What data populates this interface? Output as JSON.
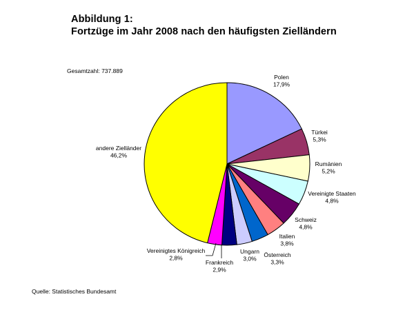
{
  "header": {
    "title_line1": "Abbildung 1:",
    "title_line2": "Fortzüge im Jahr 2008 nach den häufigsten Zielländern"
  },
  "total_label": "Gesamtzahl: 737.889",
  "source_label": "Quelle: Statistisches Bundesamt",
  "chart_data": {
    "type": "pie",
    "title": "Fortzüge im Jahr 2008 nach den häufigsten Zielländern",
    "total": 737889,
    "slices": [
      {
        "label": "Polen",
        "value": 17.9,
        "value_label": "17,9%",
        "color": "#9999ff"
      },
      {
        "label": "Türkei",
        "value": 5.3,
        "value_label": "5,3%",
        "color": "#993366"
      },
      {
        "label": "Rumänien",
        "value": 5.2,
        "value_label": "5,2%",
        "color": "#ffffcc"
      },
      {
        "label": "Vereinigte Staaten",
        "value": 4.8,
        "value_label": "4,8%",
        "color": "#ccffff"
      },
      {
        "label": "Schweiz",
        "value": 4.8,
        "value_label": "4,8%",
        "color": "#660066"
      },
      {
        "label": "Italien",
        "value": 3.8,
        "value_label": "3,8%",
        "color": "#ff8080"
      },
      {
        "label": "Österreich",
        "value": 3.3,
        "value_label": "3,3%",
        "color": "#0066cc"
      },
      {
        "label": "Ungarn",
        "value": 3.0,
        "value_label": "3,0%",
        "color": "#ccccff"
      },
      {
        "label": "Frankreich",
        "value": 2.9,
        "value_label": "2,9%",
        "color": "#000080"
      },
      {
        "label": "Vereinigtes Königreich",
        "value": 2.8,
        "value_label": "2,8%",
        "color": "#ff00ff"
      },
      {
        "label": "andere Zielländer",
        "value": 46.2,
        "value_label": "46,2%",
        "color": "#ffff00"
      }
    ]
  }
}
